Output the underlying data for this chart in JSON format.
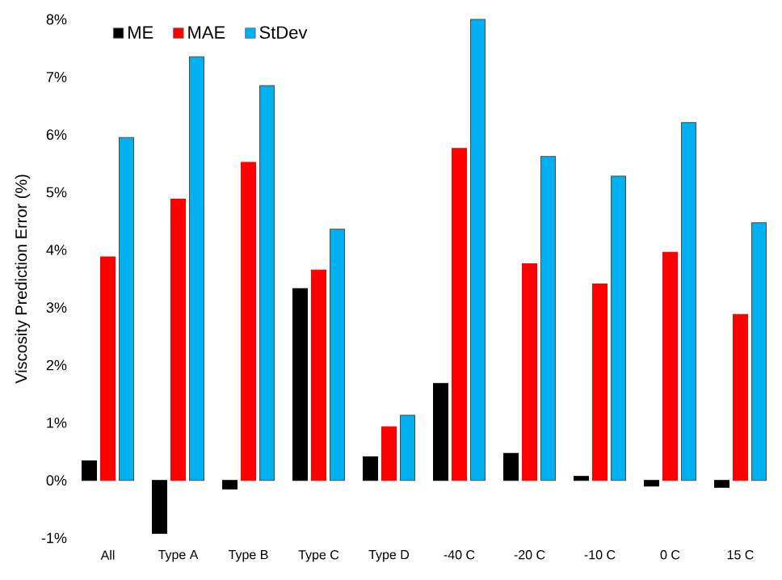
{
  "chart_data": {
    "type": "bar",
    "ylabel": "Viscosity Prediction Error (%)",
    "categories": [
      "All",
      "Type A",
      "Type B",
      "Type C",
      "Type D",
      "-40 C",
      "-20 C",
      "-10 C",
      "0 C",
      "15 C"
    ],
    "series": [
      {
        "name": "ME",
        "color": "#000000",
        "values": [
          0.34,
          -0.92,
          -0.15,
          3.33,
          0.41,
          1.68,
          0.47,
          0.07,
          -0.1,
          -0.12
        ]
      },
      {
        "name": "MAE",
        "color": "#ff0000",
        "values": [
          3.88,
          4.88,
          5.52,
          3.65,
          0.93,
          5.76,
          3.76,
          3.41,
          3.96,
          2.88
        ]
      },
      {
        "name": "StDev",
        "color": "#00b0f0",
        "values": [
          5.95,
          7.35,
          6.85,
          4.36,
          1.13,
          8.0,
          5.62,
          5.28,
          6.21,
          4.47
        ]
      }
    ],
    "ylim": [
      -1,
      8
    ],
    "yticks": [
      {
        "value": -1,
        "label": "-1%"
      },
      {
        "value": 0,
        "label": "0%"
      },
      {
        "value": 1,
        "label": "1%"
      },
      {
        "value": 2,
        "label": "2%"
      },
      {
        "value": 3,
        "label": "3%"
      },
      {
        "value": 4,
        "label": "4%"
      },
      {
        "value": 5,
        "label": "5%"
      },
      {
        "value": 6,
        "label": "6%"
      },
      {
        "value": 7,
        "label": "7%"
      },
      {
        "value": 8,
        "label": "8%"
      }
    ],
    "grid": false,
    "legend": "top left"
  }
}
